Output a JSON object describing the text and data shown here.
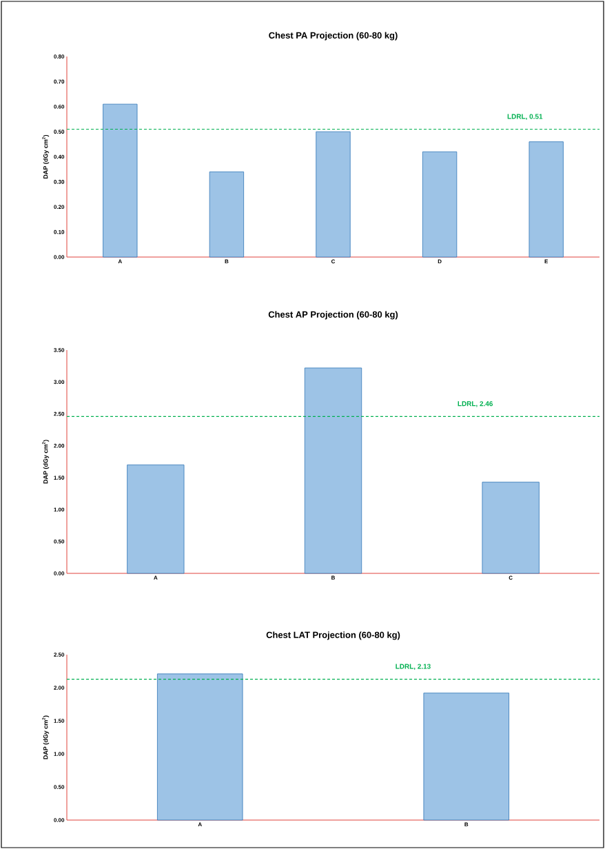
{
  "chart_data": [
    {
      "type": "bar",
      "title": "Chest PA Projection (60-80 kg)",
      "ylabel": "DAP (dGy cm$^{2}$)",
      "categories": [
        "A",
        "B",
        "C",
        "D",
        "E"
      ],
      "values": [
        0.61,
        0.34,
        0.5,
        0.42,
        0.46
      ],
      "color": "#9dc3e6",
      "ylim": [
        0,
        0.8
      ],
      "yticks": [
        {
          "value": 0,
          "label": "0.00"
        },
        {
          "value": 0.1,
          "label": "0.10"
        },
        {
          "value": 0.2,
          "label": "0.20"
        },
        {
          "value": 0.3,
          "label": "0.30"
        },
        {
          "value": 0.4,
          "label": "0.40"
        },
        {
          "value": 0.5,
          "label": "0.50"
        },
        {
          "value": 0.6,
          "label": "0.60"
        },
        {
          "value": 0.7,
          "label": "0.70"
        },
        {
          "value": 0.8,
          "label": "0.80"
        }
      ],
      "ref_lines": [
        {
          "axis": "y",
          "value": 0.51,
          "label": "LDRL, 0.51",
          "color": "#00b050",
          "line_style": "dashed"
        }
      ]
    },
    {
      "type": "bar",
      "title": "Chest AP Projection (60-80 kg)",
      "ylabel": "DAP (dGy cm$^{2}$)",
      "categories": [
        "A",
        "B",
        "C"
      ],
      "values": [
        1.7,
        3.22,
        1.43
      ],
      "color": "#9dc3e6",
      "ylim": [
        0,
        3.5
      ],
      "yticks": [
        {
          "value": 0,
          "label": "0.00"
        },
        {
          "value": 0.5,
          "label": "0.50"
        },
        {
          "value": 1,
          "label": "1.00"
        },
        {
          "value": 1.5,
          "label": "1.50"
        },
        {
          "value": 2,
          "label": "2.00"
        },
        {
          "value": 2.5,
          "label": "2.50"
        },
        {
          "value": 3,
          "label": "3.00"
        },
        {
          "value": 3.5,
          "label": "3.50"
        }
      ],
      "ref_lines": [
        {
          "axis": "y",
          "value": 2.46,
          "label": "LDRL, 2.46",
          "color": "#00b050",
          "line_style": "dashed"
        }
      ]
    },
    {
      "type": "bar",
      "title": "Chest LAT Projection (60-80 kg)",
      "ylabel": "DAP (dGy cm$^{2}$)",
      "categories": [
        "A",
        "B"
      ],
      "values": [
        2.21,
        1.92
      ],
      "color": "#9dc3e6",
      "ylim": [
        0,
        2.5
      ],
      "yticks": [
        {
          "value": 0,
          "label": "0.00"
        },
        {
          "value": 0.5,
          "label": "0.50"
        },
        {
          "value": 1,
          "label": "1.00"
        },
        {
          "value": 1.5,
          "label": "1.50"
        },
        {
          "value": 2,
          "label": "2.00"
        },
        {
          "value": 2.5,
          "label": "2.50"
        }
      ],
      "ref_lines": [
        {
          "axis": "y",
          "value": 2.13,
          "label": "LDRL, 2.13",
          "color": "#00b050",
          "line_style": "dashed"
        }
      ]
    }
  ]
}
